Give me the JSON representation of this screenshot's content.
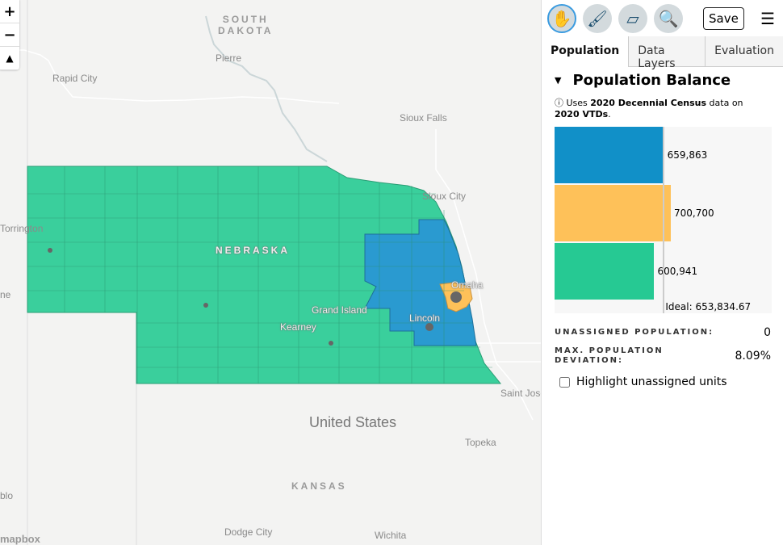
{
  "map": {
    "controls": {
      "zoom_in": "+",
      "zoom_out": "−",
      "compass": "▲"
    },
    "labels": {
      "south_dakota": "SOUTH\nDAKOTA",
      "nebraska": "NEBRASKA",
      "kansas": "KANSAS",
      "united_states": "United States",
      "pierre": "Pierre",
      "rapid_city": "Rapid City",
      "sioux_falls": "Sioux Falls",
      "sioux_city": "Sioux City",
      "torrington": "Torrington",
      "cheyenne_partial": "ne",
      "omaha": "Omaha",
      "lincoln": "Lincoln",
      "grand_island": "Grand Island",
      "kearney": "Kearney",
      "saint_joseph_partial": "Saint Jose",
      "topeka": "Topeka",
      "pueblo_partial": "blo",
      "dodge_city": "Dodge City",
      "wichita": "Wichita"
    },
    "attribution": "mapbox",
    "district_colors": {
      "d1": "#1e91cb",
      "d2": "#fec159",
      "d3": "#33cf98"
    }
  },
  "toolbar": {
    "tools": [
      {
        "name": "pan",
        "icon": "hand-icon",
        "active": true
      },
      {
        "name": "brush",
        "icon": "brush-icon"
      },
      {
        "name": "eraser",
        "icon": "eraser-icon"
      },
      {
        "name": "search",
        "icon": "magnifier-icon"
      }
    ],
    "save": "Save",
    "menu_icon": "hamburger-icon"
  },
  "tabs": [
    "Population",
    "Data Layers",
    "Evaluation"
  ],
  "section": {
    "title": "Population Balance",
    "info_prefix": "Uses ",
    "info_b1": "2020 Decennial Census",
    "info_mid": " data on ",
    "info_b2": "2020 VTDs",
    "info_suffix": "."
  },
  "chart_data": {
    "type": "bar",
    "orientation": "horizontal",
    "values": [
      659863,
      700700,
      600941
    ],
    "labels": [
      "659,863",
      "700,700",
      "600,941"
    ],
    "colors": [
      "#1190c8",
      "#fec159",
      "#26c993"
    ],
    "ideal": 653834.67,
    "ideal_label": "Ideal: 653,834.67"
  },
  "stats": {
    "unassigned_label": "UNASSIGNED POPULATION:",
    "unassigned_value": "0",
    "deviation_label": "MAX. POPULATION DEVIATION:",
    "deviation_value": "8.09%"
  },
  "highlight_label": "Highlight unassigned units"
}
